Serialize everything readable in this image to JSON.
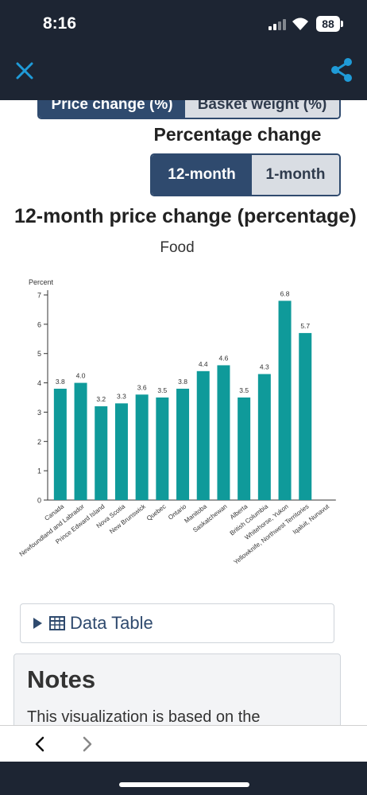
{
  "status_bar": {
    "time": "8:16",
    "battery": "88",
    "icons": [
      "signal-icon",
      "wifi-icon",
      "battery-icon"
    ]
  },
  "nav": {
    "close_icon": "close-icon",
    "share_icon": "share-icon",
    "bg_color": "#1d2533",
    "icon_color": "#1f9bd8"
  },
  "metric_toggle": {
    "options": [
      "Price change (%)",
      "Basket weight (%)"
    ],
    "selected": "Price change (%)"
  },
  "period": {
    "label": "Percentage change",
    "options": [
      "12-month",
      "1-month"
    ],
    "selected": "12-month"
  },
  "chart_title": "12-month price change (percentage)",
  "chart_subtitle": "Food",
  "chart_data": {
    "type": "bar",
    "title": "12-month price change (percentage)",
    "subtitle": "Food",
    "ylabel": "Percent",
    "xlabel": "",
    "ylim": [
      0,
      7
    ],
    "yticks": [
      0,
      1,
      2,
      3,
      4,
      5,
      6,
      7
    ],
    "categories": [
      "Canada",
      "Newfoundland and Labrador",
      "Prince Edward Island",
      "Nova Scotia",
      "New Brunswick",
      "Quebec",
      "Ontario",
      "Manitoba",
      "Saskatchewan",
      "Alberta",
      "British Columbia",
      "Whitehorse, Yukon",
      "Yellowknife, Northwest Territories",
      "Iqaluit, Nunavut"
    ],
    "values": [
      3.8,
      4.0,
      3.2,
      3.3,
      3.6,
      3.5,
      3.8,
      4.4,
      4.6,
      3.5,
      4.3,
      6.8,
      5.7,
      null
    ],
    "data_labels": [
      "3.8",
      "4.0",
      "3.2",
      "3.3",
      "3.6",
      "3.5",
      "3.8",
      "4.4",
      "4.6",
      "3.5",
      "4.3",
      "6.8",
      "5.7",
      ""
    ],
    "bar_color": "#0f9a9a",
    "grid": false,
    "legend": "none"
  },
  "data_table": {
    "label": "Data Table",
    "icon": "table-icon"
  },
  "notes": {
    "title": "Notes",
    "text": "This visualization is based on the"
  },
  "browser": {
    "back_icon": "chevron-left-icon",
    "forward_icon": "chevron-right-icon"
  }
}
